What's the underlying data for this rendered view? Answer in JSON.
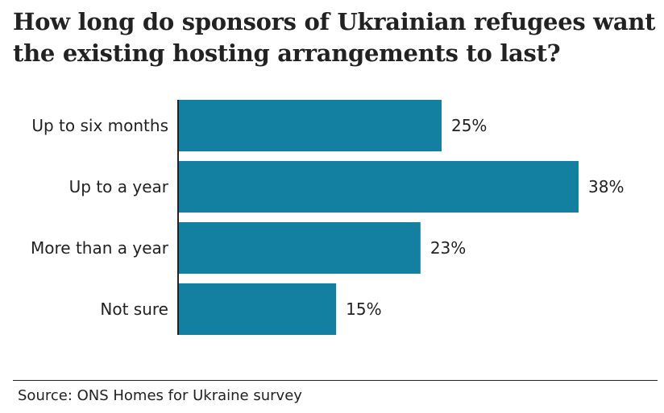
{
  "chart_data": {
    "type": "bar",
    "orientation": "horizontal",
    "title": "How long do sponsors of Ukrainian refugees want the existing hosting arrangements to last?",
    "categories": [
      "Up to six months",
      "Up to a year",
      "More than a year",
      "Not sure"
    ],
    "values": [
      25,
      38,
      23,
      15
    ],
    "value_labels": [
      "25%",
      "38%",
      "23%",
      "15%"
    ],
    "unit": "%",
    "xlim": [
      0,
      38
    ],
    "grid": false,
    "legend": "none",
    "bar_color": "#1380A1",
    "source": "Source: ONS Homes for Ukraine survey"
  }
}
